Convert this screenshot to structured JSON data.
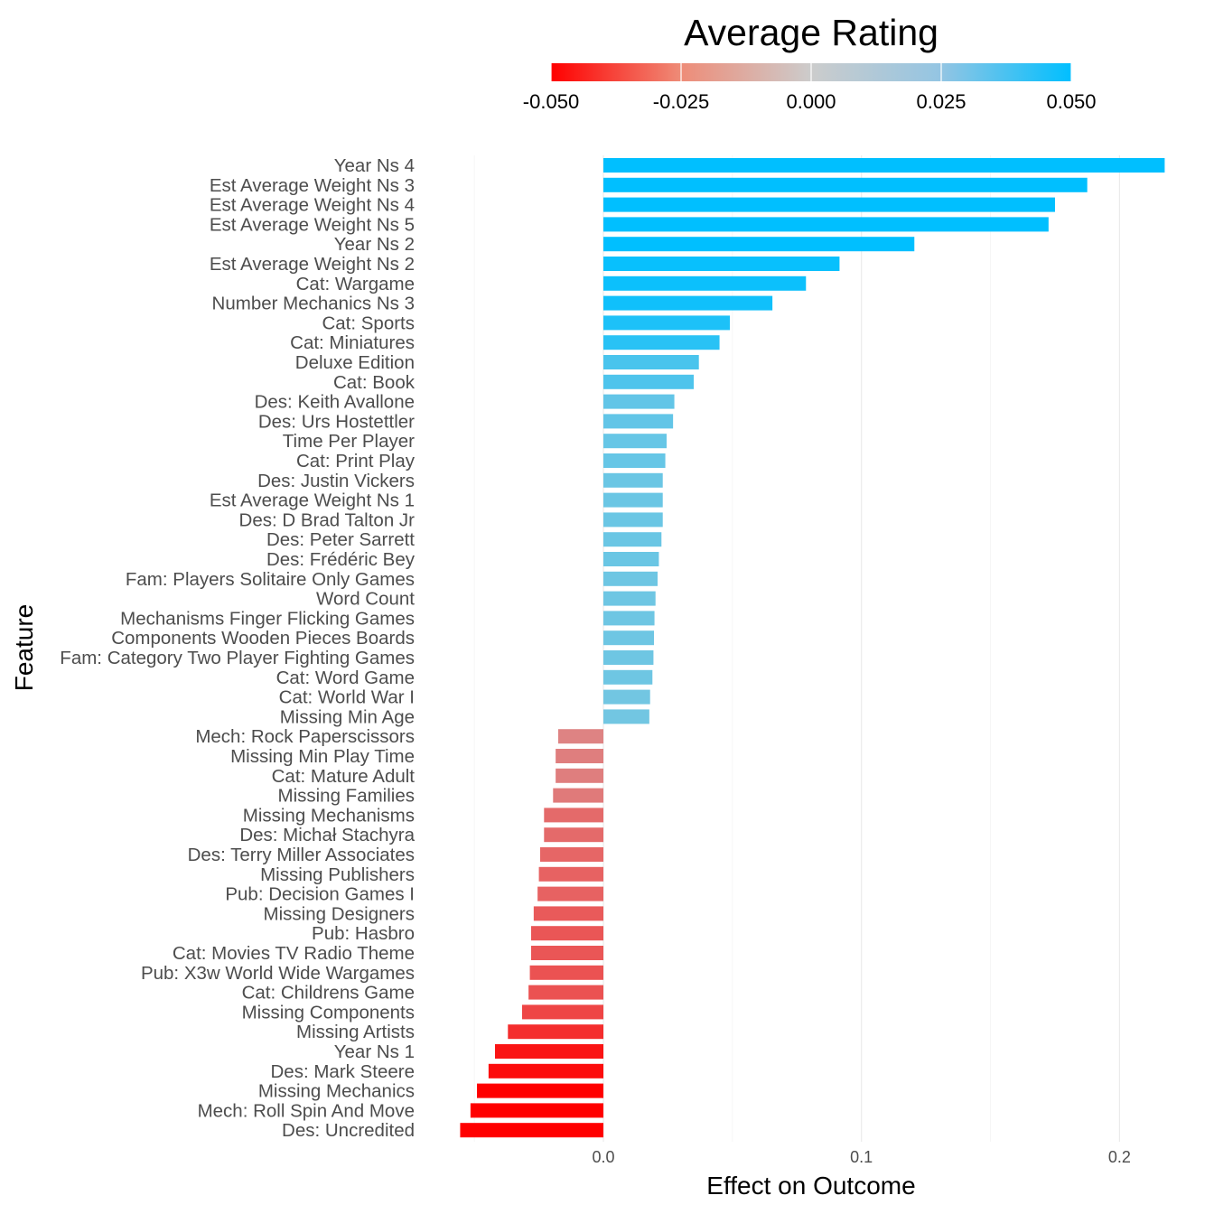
{
  "chart_data": {
    "type": "bar",
    "orientation": "horizontal",
    "xlabel": "Effect on Outcome",
    "ylabel": "Feature",
    "x_ticks": [
      "0.0",
      "0.1",
      "0.2"
    ],
    "xlim": [
      -0.0565,
      0.218
    ],
    "grid": true,
    "legend": {
      "title": "Average Rating",
      "position": "top",
      "type": "colorbar",
      "range": [
        -0.05,
        0.05
      ],
      "tick_labels": [
        "-0.050",
        "-0.025",
        "0.000",
        "0.025",
        "0.050"
      ],
      "low_color": "#ff0000",
      "mid_color": "#cccccc",
      "high_color": "#00bfff"
    },
    "categories": [
      "Year Ns 4",
      "Est Average Weight Ns 3",
      "Est Average Weight Ns 4",
      "Est Average Weight Ns 5",
      "Year Ns 2",
      "Est Average Weight Ns 2",
      "Cat: Wargame",
      "Number Mechanics Ns 3",
      "Cat: Sports",
      "Cat: Miniatures",
      "Deluxe Edition",
      "Cat: Book",
      "Des: Keith Avallone",
      "Des: Urs Hostettler",
      "Time Per Player",
      "Cat: Print Play",
      "Des: Justin Vickers",
      "Est Average Weight Ns 1",
      "Des: D Brad Talton Jr",
      "Des: Peter Sarrett",
      "Des: Frédéric Bey",
      "Fam: Players Solitaire Only Games",
      "Word Count",
      "Mechanisms Finger Flicking Games",
      "Components Wooden Pieces Boards",
      "Fam: Category Two Player Fighting Games",
      "Cat: Word Game",
      "Cat: World War I",
      "Missing Min Age",
      "Mech: Rock Paperscissors",
      "Missing Min Play Time",
      "Cat: Mature Adult",
      "Missing Families",
      "Missing Mechanisms",
      "Des: Michał Stachyra",
      "Des: Terry Miller Associates",
      "Missing Publishers",
      "Pub: Decision Games I",
      "Missing Designers",
      "Pub: Hasbro",
      "Cat: Movies TV Radio Theme",
      "Pub: X3w World Wide Wargames",
      "Cat: Childrens Game",
      "Missing Components",
      "Missing Artists",
      "Year Ns 1",
      "Des: Mark Steere",
      "Missing Mechanics",
      "Mech: Roll Spin And Move",
      "Des: Uncredited"
    ],
    "values": [
      0.2175,
      0.1875,
      0.175,
      0.1725,
      0.1205,
      0.0915,
      0.0785,
      0.0655,
      0.049,
      0.045,
      0.037,
      0.035,
      0.0275,
      0.027,
      0.0245,
      0.024,
      0.023,
      0.023,
      0.023,
      0.0225,
      0.0215,
      0.021,
      0.0202,
      0.0198,
      0.0196,
      0.0194,
      0.019,
      0.0181,
      0.0178,
      -0.0175,
      -0.0185,
      -0.0185,
      -0.0195,
      -0.023,
      -0.023,
      -0.0245,
      -0.025,
      -0.0255,
      -0.027,
      -0.028,
      -0.028,
      -0.0285,
      -0.029,
      -0.0315,
      -0.037,
      -0.042,
      -0.0445,
      -0.049,
      -0.0515,
      -0.0555
    ],
    "color_values": [
      0.05,
      0.05,
      0.05,
      0.05,
      0.05,
      0.048,
      0.047,
      0.046,
      0.043,
      0.04,
      0.032,
      0.031,
      0.026,
      0.026,
      0.025,
      0.025,
      0.024,
      0.024,
      0.024,
      0.024,
      0.024,
      0.023,
      0.023,
      0.023,
      0.023,
      0.023,
      0.023,
      0.022,
      0.022,
      -0.018,
      -0.019,
      -0.019,
      -0.02,
      -0.024,
      -0.024,
      -0.025,
      -0.026,
      -0.026,
      -0.028,
      -0.029,
      -0.029,
      -0.03,
      -0.03,
      -0.033,
      -0.039,
      -0.045,
      -0.047,
      -0.05,
      -0.05,
      -0.05
    ]
  }
}
